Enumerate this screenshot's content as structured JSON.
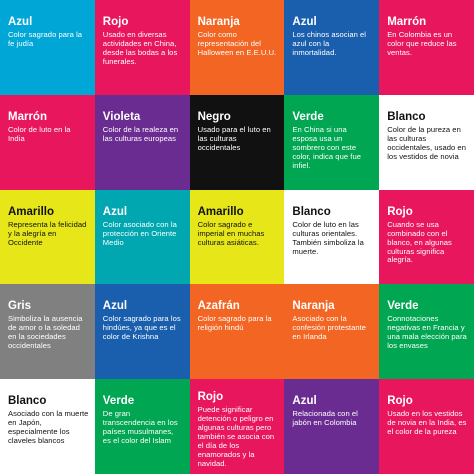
{
  "cells": [
    {
      "title": "Azul",
      "desc": "Color sagrado para la fe judía",
      "bg": "#00A6D6",
      "text": "light"
    },
    {
      "title": "Rojo",
      "desc": "Usado en diversas actividades en China, desde las bodas a los funerales.",
      "bg": "#E8175D",
      "text": "light"
    },
    {
      "title": "Naranja",
      "desc": "Color como representación del Halloween en E.E.U.U.",
      "bg": "#F26522",
      "text": "light"
    },
    {
      "title": "Azul",
      "desc": "Los chinos asocian el azul con la inmortalidad.",
      "bg": "#1A5FAD",
      "text": "light"
    },
    {
      "title": "Marrón",
      "desc": "En Colombia es un color que reduce las ventas.",
      "bg": "#E8175D",
      "text": "light"
    },
    {
      "title": "Marrón",
      "desc": "Color de luto en la India",
      "bg": "#E8175D",
      "text": "light"
    },
    {
      "title": "Violeta",
      "desc": "Color de la realeza en las culturas europeas",
      "bg": "#6B2C91",
      "text": "light"
    },
    {
      "title": "Negro",
      "desc": "Usado para el luto en las culturas occidentales",
      "bg": "#111111",
      "text": "light"
    },
    {
      "title": "Verde",
      "desc": "En China si una esposa usa un sombrero con este color, indica que fue infiel.",
      "bg": "#00A651",
      "text": "light"
    },
    {
      "title": "Blanco",
      "desc": "Color de la pureza en las culturas occidentales, usado en los vestidos de novia",
      "bg": "#FFFFFF",
      "text": "dark"
    },
    {
      "title": "Amarillo",
      "desc": "Representa la felicidad y la alegría en Occidente",
      "bg": "#E6E619",
      "text": "dark"
    },
    {
      "title": "Azul",
      "desc": "Color asociado con la protección en Oriente Medio",
      "bg": "#00A6B0",
      "text": "light"
    },
    {
      "title": "Amarillo",
      "desc": "Color sagrado e imperial en muchas culturas asiáticas.",
      "bg": "#E6E619",
      "text": "dark"
    },
    {
      "title": "Blanco",
      "desc": "Color de luto en las culturas orientales. También simboliza la muerte.",
      "bg": "#FFFFFF",
      "text": "dark"
    },
    {
      "title": "Rojo",
      "desc": "Cuando se usa combinado con el blanco, en algunas culturas significa alegría.",
      "bg": "#E8175D",
      "text": "light"
    },
    {
      "title": "Gris",
      "desc": "Simboliza la ausencia de amor o la soledad en la sociedades occidentales",
      "bg": "#808080",
      "text": "light"
    },
    {
      "title": "Azul",
      "desc": "Color sagrado para los hindúes, ya que es el color de Krishna",
      "bg": "#1A5FAD",
      "text": "light"
    },
    {
      "title": "Azafrán",
      "desc": "Color sagrado para la religión hindú",
      "bg": "#F26522",
      "text": "light"
    },
    {
      "title": "Naranja",
      "desc": "Asociado con la confesión protestante en Irlanda",
      "bg": "#F26522",
      "text": "light"
    },
    {
      "title": "Verde",
      "desc": "Connotaciones negativas en Francia y una mala elección para los envases",
      "bg": "#00A651",
      "text": "light"
    },
    {
      "title": "Blanco",
      "desc": "Asociado con la muerte en Japón, especialmente los claveles blancos",
      "bg": "#FFFFFF",
      "text": "dark"
    },
    {
      "title": "Verde",
      "desc": "De gran transcendencia en los países musulmanes, es el color del Islam",
      "bg": "#00A651",
      "text": "light"
    },
    {
      "title": "Rojo",
      "desc": "Puede significar detención o peligro en algunas culturas pero también se asocia con el día de los enamorados y la navidad.",
      "bg": "#E8175D",
      "text": "light"
    },
    {
      "title": "Azul",
      "desc": "Relacionada con el jabón en Colombia",
      "bg": "#6B2C91",
      "text": "light"
    },
    {
      "title": "Rojo",
      "desc": "Usado en los vestidos de novia en la India, es el color de la pureza",
      "bg": "#E8175D",
      "text": "light"
    }
  ]
}
